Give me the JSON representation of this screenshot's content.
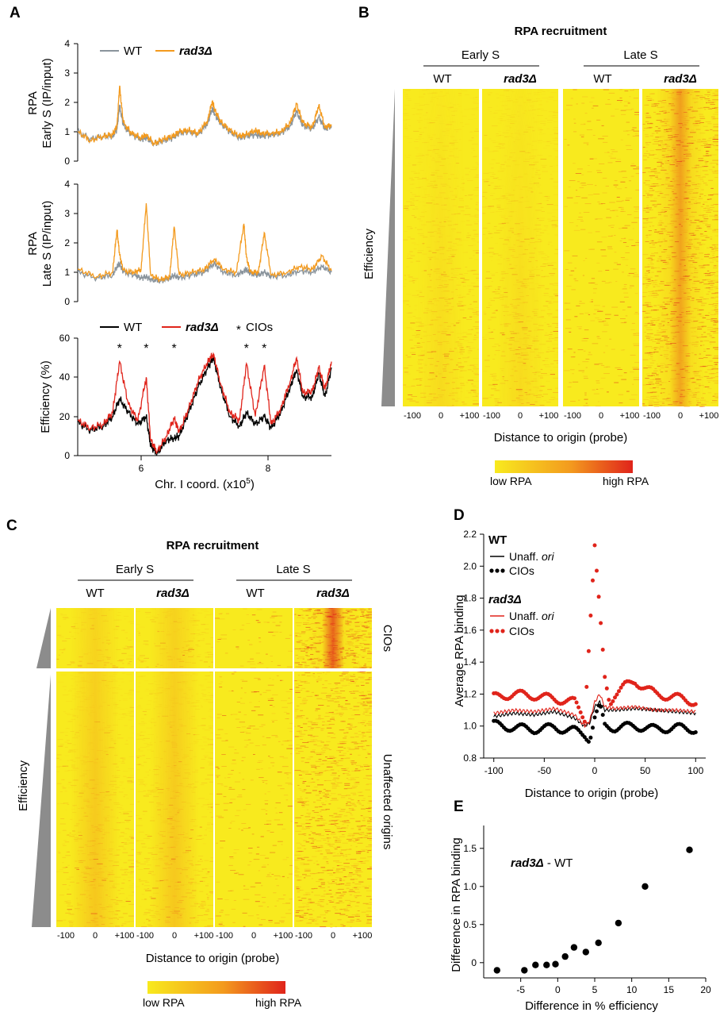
{
  "colors": {
    "wt_gray": "#8a949c",
    "rad3_orange": "#f39a1e",
    "wt_black": "#000000",
    "rad3_red": "#e0241b",
    "heat_low": "#f8ea1e",
    "heat_mid": "#f39a1e",
    "heat_high": "#e0241b",
    "triangle": "#8c8c8c"
  },
  "panels": {
    "A": "A",
    "B": "B",
    "C": "C",
    "D": "D",
    "E": "E"
  },
  "panel_a": {
    "top": {
      "ylabel_1": "RPA",
      "ylabel_2": "Early S (IP/input)",
      "yticks": [
        "0",
        "1",
        "2",
        "3",
        "4"
      ],
      "legend_wt": "WT",
      "legend_mut": "rad3Δ"
    },
    "mid": {
      "ylabel_1": "RPA",
      "ylabel_2": "Late S (IP/input)",
      "yticks": [
        "0",
        "1",
        "2",
        "3",
        "4"
      ]
    },
    "bottom": {
      "ylabel": "Efficiency (%)",
      "yticks": [
        "0",
        "20",
        "40",
        "60"
      ],
      "legend_wt": "WT",
      "legend_mut": "rad3Δ",
      "legend_cio": "CIOs",
      "star": "*"
    },
    "xticks": [
      "6",
      "8"
    ],
    "xlabel": "Chr. I coord. (x10",
    "xlabel_sup": "5",
    "xlabel_end": ")"
  },
  "panel_b": {
    "title": "RPA recruitment",
    "phase_early": "Early S",
    "phase_late": "Late S",
    "wt": "WT",
    "mut": "rad3Δ",
    "efficiency": "Efficiency",
    "xticks": [
      "-100",
      "0",
      "+100"
    ],
    "xlabel": "Distance to origin (probe)",
    "low": "low RPA",
    "high": "high RPA"
  },
  "panel_c": {
    "title": "RPA recruitment",
    "phase_early": "Early S",
    "phase_late": "Late S",
    "wt": "WT",
    "mut": "rad3Δ",
    "efficiency": "Efficiency",
    "cios": "CIOs",
    "unaffected": "Unaffected origins",
    "xticks": [
      "-100",
      "0",
      "+100"
    ],
    "xlabel": "Distance to origin (probe)",
    "low": "low RPA",
    "high": "high RPA"
  },
  "chart_data": [
    {
      "type": "line",
      "id": "A_top",
      "title": "",
      "xlabel": "Chr. I coord. (x10^5)",
      "ylabel": "RPA Early S (IP/input)",
      "xlim": [
        5.0,
        9.0
      ],
      "ylim": [
        0,
        4
      ],
      "series": [
        {
          "name": "WT",
          "x": [
            5.0,
            5.2,
            5.4,
            5.55,
            5.62,
            5.66,
            5.72,
            5.85,
            6.0,
            6.08,
            6.2,
            6.35,
            6.5,
            6.6,
            6.75,
            6.9,
            7.05,
            7.12,
            7.16,
            7.25,
            7.4,
            7.55,
            7.65,
            7.8,
            7.9,
            8.05,
            8.2,
            8.35,
            8.45,
            8.55,
            8.7,
            8.8,
            8.9,
            9.0
          ],
          "y": [
            1.0,
            0.75,
            0.85,
            0.85,
            1.1,
            1.9,
            1.2,
            0.9,
            0.75,
            0.8,
            0.6,
            0.7,
            0.8,
            0.95,
            1.0,
            0.9,
            1.3,
            1.8,
            1.6,
            1.3,
            1.0,
            0.8,
            0.85,
            0.9,
            0.85,
            0.9,
            0.95,
            1.2,
            1.7,
            1.2,
            1.1,
            1.5,
            1.1,
            1.2
          ]
        },
        {
          "name": "rad3Δ",
          "x": [
            5.0,
            5.2,
            5.4,
            5.55,
            5.62,
            5.66,
            5.72,
            5.85,
            6.0,
            6.08,
            6.2,
            6.35,
            6.5,
            6.6,
            6.75,
            6.9,
            7.05,
            7.12,
            7.16,
            7.25,
            7.4,
            7.55,
            7.65,
            7.8,
            7.9,
            8.05,
            8.2,
            8.35,
            8.45,
            8.55,
            8.7,
            8.8,
            8.9,
            9.0
          ],
          "y": [
            1.0,
            0.7,
            0.85,
            0.9,
            1.2,
            2.55,
            1.3,
            0.95,
            0.8,
            0.9,
            0.6,
            0.75,
            0.85,
            1.0,
            1.05,
            0.95,
            1.4,
            2.05,
            1.75,
            1.35,
            1.05,
            0.85,
            0.9,
            1.05,
            0.95,
            0.95,
            1.0,
            1.3,
            1.95,
            1.3,
            1.15,
            1.9,
            1.15,
            1.25
          ]
        }
      ]
    },
    {
      "type": "line",
      "id": "A_mid",
      "xlabel": "Chr. I coord. (x10^5)",
      "ylabel": "RPA Late S (IP/input)",
      "xlim": [
        5.0,
        9.0
      ],
      "ylim": [
        0,
        4
      ],
      "series": [
        {
          "name": "WT",
          "x": [
            5.0,
            5.3,
            5.55,
            5.62,
            5.66,
            5.72,
            5.9,
            6.0,
            6.08,
            6.15,
            6.3,
            6.45,
            6.52,
            6.6,
            6.8,
            7.0,
            7.15,
            7.3,
            7.5,
            7.62,
            7.66,
            7.72,
            7.85,
            7.94,
            8.05,
            8.3,
            8.5,
            8.7,
            8.85,
            9.0
          ],
          "y": [
            1.0,
            0.8,
            0.9,
            1.2,
            1.3,
            1.0,
            0.9,
            0.8,
            0.85,
            0.75,
            0.7,
            0.8,
            0.9,
            0.8,
            0.9,
            1.0,
            1.3,
            1.0,
            0.9,
            1.05,
            1.1,
            0.95,
            0.9,
            1.0,
            0.85,
            0.9,
            1.05,
            1.0,
            1.2,
            1.0
          ]
        },
        {
          "name": "rad3Δ",
          "x": [
            5.0,
            5.3,
            5.55,
            5.62,
            5.66,
            5.72,
            5.9,
            6.0,
            6.08,
            6.15,
            6.3,
            6.45,
            6.52,
            6.6,
            6.8,
            7.0,
            7.15,
            7.3,
            7.5,
            7.62,
            7.66,
            7.72,
            7.85,
            7.94,
            8.05,
            8.3,
            8.5,
            8.7,
            8.85,
            9.0
          ],
          "y": [
            1.1,
            0.85,
            1.0,
            2.45,
            1.6,
            1.05,
            1.0,
            1.1,
            3.35,
            0.9,
            0.75,
            0.85,
            2.55,
            0.9,
            1.0,
            1.1,
            1.45,
            1.1,
            1.0,
            2.65,
            1.5,
            1.0,
            1.0,
            2.35,
            0.9,
            1.0,
            1.2,
            1.1,
            1.55,
            1.05
          ]
        }
      ]
    },
    {
      "type": "line",
      "id": "A_bottom",
      "xlabel": "Chr. I coord. (x10^5)",
      "ylabel": "Efficiency (%)",
      "xlim": [
        5.0,
        9.0
      ],
      "ylim": [
        0,
        60
      ],
      "annotations": [
        "* at 5.66",
        "* at 6.08",
        "* at 6.52",
        "* at 7.66",
        "* at 7.94"
      ],
      "series": [
        {
          "name": "WT",
          "x": [
            5.0,
            5.2,
            5.4,
            5.55,
            5.66,
            5.8,
            5.95,
            6.08,
            6.15,
            6.25,
            6.4,
            6.52,
            6.6,
            6.75,
            6.9,
            7.05,
            7.14,
            7.25,
            7.4,
            7.55,
            7.66,
            7.8,
            7.94,
            8.05,
            8.2,
            8.35,
            8.45,
            8.55,
            8.7,
            8.8,
            8.9,
            9.0
          ],
          "y": [
            17,
            13,
            15,
            20,
            29,
            22,
            16,
            20,
            5,
            1,
            8,
            9,
            10,
            22,
            35,
            45,
            50,
            35,
            20,
            15,
            22,
            16,
            20,
            14,
            22,
            35,
            44,
            30,
            30,
            42,
            30,
            45
          ]
        },
        {
          "name": "rad3Δ",
          "x": [
            5.0,
            5.2,
            5.4,
            5.55,
            5.66,
            5.8,
            5.95,
            6.08,
            6.15,
            6.25,
            6.4,
            6.52,
            6.6,
            6.75,
            6.9,
            7.05,
            7.14,
            7.25,
            7.4,
            7.55,
            7.66,
            7.8,
            7.94,
            8.05,
            8.2,
            8.35,
            8.45,
            8.55,
            8.7,
            8.8,
            8.9,
            9.0
          ],
          "y": [
            18,
            14,
            16,
            22,
            48,
            26,
            18,
            40,
            8,
            2,
            10,
            19,
            12,
            24,
            38,
            48,
            52,
            37,
            22,
            18,
            47,
            20,
            46,
            16,
            24,
            38,
            50,
            32,
            33,
            45,
            34,
            48
          ]
        }
      ]
    },
    {
      "type": "heatmap",
      "id": "B",
      "title": "RPA recruitment",
      "columns": [
        "Early S WT",
        "Early S rad3Δ",
        "Late S WT",
        "Late S rad3Δ"
      ],
      "row_order": "origin efficiency (low to high, top to bottom)",
      "xlabel": "Distance to origin (probe)",
      "x_range": [
        -100,
        100
      ],
      "colorbar": [
        "low RPA",
        "high RPA"
      ]
    },
    {
      "type": "heatmap",
      "id": "C",
      "title": "RPA recruitment",
      "columns": [
        "Early S WT",
        "Early S rad3Δ",
        "Late S WT",
        "Late S rad3Δ"
      ],
      "row_groups": [
        "CIOs",
        "Unaffected origins"
      ],
      "xlabel": "Distance to origin (probe)",
      "x_range": [
        -100,
        100
      ],
      "colorbar": [
        "low RPA",
        "high RPA"
      ]
    },
    {
      "type": "line",
      "id": "D",
      "xlabel": "Distance to origin (probe)",
      "ylabel": "Average RPA binding",
      "xlim": [
        -110,
        110
      ],
      "ylim": [
        0.8,
        2.2
      ],
      "xticks": [
        "-100",
        "-50",
        "0",
        "50",
        "100"
      ],
      "yticks": [
        "0.8",
        "1.0",
        "1.2",
        "1.4",
        "1.6",
        "1.8",
        "2.0",
        "2.2"
      ],
      "legend": {
        "group_wt": "WT",
        "group_mut": "rad3Δ",
        "unaff": "Unaff. ",
        "ori": "ori",
        "cios": "CIOs"
      },
      "series": [
        {
          "name": "WT Unaff. ori",
          "style": "line",
          "x": [
            -100,
            -80,
            -60,
            -40,
            -20,
            -10,
            -5,
            0,
            5,
            10,
            20,
            40,
            60,
            80,
            100
          ],
          "y": [
            1.06,
            1.08,
            1.07,
            1.09,
            1.05,
            1.0,
            1.02,
            1.12,
            1.15,
            1.1,
            1.1,
            1.11,
            1.1,
            1.09,
            1.08
          ]
        },
        {
          "name": "WT CIOs",
          "style": "dots",
          "x": [
            -100,
            -80,
            -60,
            -40,
            -20,
            -10,
            -5,
            0,
            5,
            10,
            20,
            40,
            60,
            80,
            100
          ],
          "y": [
            1.01,
            0.99,
            0.98,
            0.99,
            0.97,
            0.95,
            0.92,
            1.05,
            1.12,
            1.0,
            0.99,
            1.0,
            0.98,
            0.99,
            0.98
          ]
        },
        {
          "name": "rad3Δ Unaff. ori",
          "style": "line",
          "x": [
            -100,
            -80,
            -60,
            -40,
            -20,
            -10,
            -5,
            0,
            5,
            10,
            20,
            40,
            60,
            80,
            100
          ],
          "y": [
            1.08,
            1.1,
            1.09,
            1.11,
            1.07,
            1.0,
            1.03,
            1.15,
            1.2,
            1.12,
            1.11,
            1.12,
            1.1,
            1.1,
            1.09
          ]
        },
        {
          "name": "rad3Δ CIOs",
          "style": "dots",
          "x": [
            -100,
            -80,
            -60,
            -40,
            -20,
            -10,
            -5,
            0,
            5,
            10,
            15,
            20,
            30,
            40,
            60,
            80,
            100
          ],
          "y": [
            1.18,
            1.2,
            1.19,
            1.17,
            1.15,
            1.05,
            1.6,
            2.12,
            1.7,
            1.3,
            1.15,
            1.2,
            1.25,
            1.28,
            1.2,
            1.18,
            1.15
          ]
        }
      ]
    },
    {
      "type": "scatter",
      "id": "E",
      "annotation": "rad3Δ  - WT",
      "xlabel": "Difference in % efficiency",
      "ylabel": "Difference in RPA binding",
      "xlim": [
        -10,
        20
      ],
      "ylim": [
        -0.2,
        1.8
      ],
      "xticks": [
        "-5",
        "0",
        "5",
        "10",
        "15",
        "20"
      ],
      "yticks": [
        "0",
        "0.5",
        "1.0",
        "1.5"
      ],
      "x": [
        -8.2,
        -4.5,
        -3.0,
        -1.5,
        -0.3,
        1.0,
        2.2,
        3.8,
        5.5,
        8.2,
        11.8,
        17.8
      ],
      "y": [
        -0.1,
        -0.1,
        -0.03,
        -0.03,
        -0.02,
        0.08,
        0.2,
        0.14,
        0.26,
        0.52,
        1.0,
        1.48
      ]
    }
  ]
}
